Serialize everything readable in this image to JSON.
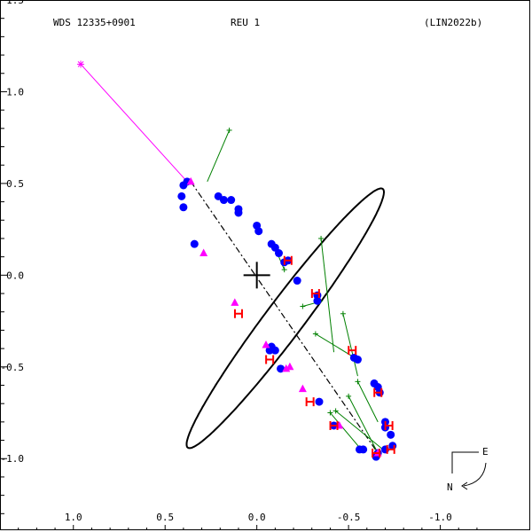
{
  "header": {
    "left": "WDS 12335+0901",
    "center": "REU   1",
    "right": "(LIN2022b)"
  },
  "compass": {
    "east": "E",
    "north": "N"
  },
  "chart_data": {
    "type": "scatter",
    "title": "",
    "xlabel": "",
    "ylabel": "",
    "xlim": [
      1.4,
      -1.5
    ],
    "ylim": [
      -1.4,
      1.5
    ],
    "x_ticks": [
      "-1.0",
      "-0.5",
      "0.0",
      "0.5",
      "1.0",
      "1.5"
    ],
    "y_ticks": [
      "1.5",
      "1.0",
      "0.5",
      "0.0",
      "-0.5",
      "-1.0"
    ],
    "grid": false,
    "colors": {
      "orbit": "#000000",
      "blue": "#0000ff",
      "red": "#ff0000",
      "magenta": "#ff00ff",
      "green": "#008000"
    },
    "primary_star": [
      0.0,
      0.0
    ],
    "orbit_ellipse": {
      "center": [
        -0.155,
        -0.235
      ],
      "semi_major": 0.883,
      "semi_minor": 0.103,
      "angle_deg": -53.0
    },
    "line_of_nodes": [
      [
        0.36,
        0.51
      ],
      [
        -0.66,
        -0.97
      ]
    ],
    "outlier": {
      "point": [
        0.96,
        1.15
      ],
      "fit": [
        0.38,
        0.51
      ]
    },
    "blue_points": [
      [
        0.38,
        0.51
      ],
      [
        0.4,
        0.49
      ],
      [
        0.41,
        0.43
      ],
      [
        0.4,
        0.37
      ],
      [
        0.34,
        0.17
      ],
      [
        0.21,
        0.43
      ],
      [
        0.18,
        0.41
      ],
      [
        0.14,
        0.41
      ],
      [
        0.1,
        0.36
      ],
      [
        0.1,
        0.34
      ],
      [
        0.0,
        0.27
      ],
      [
        -0.01,
        0.24
      ],
      [
        -0.08,
        0.17
      ],
      [
        -0.1,
        0.15
      ],
      [
        -0.12,
        0.12
      ],
      [
        -0.15,
        0.07
      ],
      [
        -0.17,
        0.08
      ],
      [
        -0.22,
        -0.03
      ],
      [
        -0.33,
        -0.11
      ],
      [
        -0.33,
        -0.14
      ],
      [
        -0.53,
        -0.45
      ],
      [
        -0.55,
        -0.46
      ],
      [
        -0.64,
        -0.59
      ],
      [
        -0.66,
        -0.61
      ],
      [
        -0.67,
        -0.64
      ],
      [
        -0.7,
        -0.8
      ],
      [
        -0.7,
        -0.83
      ],
      [
        -0.73,
        -0.87
      ],
      [
        -0.74,
        -0.93
      ],
      [
        -0.7,
        -0.95
      ],
      [
        -0.66,
        -0.97
      ],
      [
        -0.65,
        -0.99
      ],
      [
        -0.58,
        -0.95
      ],
      [
        -0.56,
        -0.95
      ],
      [
        -0.42,
        -0.82
      ],
      [
        -0.34,
        -0.69
      ],
      [
        -0.13,
        -0.51
      ],
      [
        -0.07,
        -0.41
      ],
      [
        -0.1,
        -0.41
      ],
      [
        -0.08,
        -0.39
      ]
    ],
    "red_points": [
      [
        -0.17,
        0.08
      ],
      [
        -0.32,
        -0.1
      ],
      [
        -0.52,
        -0.41
      ],
      [
        -0.66,
        -0.64
      ],
      [
        -0.72,
        -0.82
      ],
      [
        -0.73,
        -0.95
      ],
      [
        -0.65,
        -0.97
      ],
      [
        -0.42,
        -0.82
      ],
      [
        -0.29,
        -0.69
      ],
      [
        -0.07,
        -0.46
      ],
      [
        0.1,
        -0.21
      ]
    ],
    "magenta_points": [
      [
        0.36,
        0.51
      ],
      [
        0.29,
        0.12
      ],
      [
        0.12,
        -0.15
      ],
      [
        -0.05,
        -0.38
      ],
      [
        -0.16,
        -0.51
      ],
      [
        -0.18,
        -0.5
      ],
      [
        -0.25,
        -0.62
      ],
      [
        -0.45,
        -0.82
      ],
      [
        -0.66,
        -0.97
      ]
    ],
    "green_residuals": [
      [
        [
          0.15,
          0.79
        ],
        [
          0.27,
          0.51
        ]
      ],
      [
        [
          -0.35,
          0.2
        ],
        [
          -0.42,
          -0.42
        ]
      ],
      [
        [
          -0.47,
          -0.21
        ],
        [
          -0.55,
          -0.55
        ]
      ],
      [
        [
          -0.25,
          -0.17
        ],
        [
          -0.36,
          -0.14
        ]
      ],
      [
        [
          -0.32,
          -0.32
        ],
        [
          -0.55,
          -0.46
        ]
      ],
      [
        [
          -0.15,
          0.03
        ],
        [
          -0.12,
          0.1
        ]
      ],
      [
        [
          -0.55,
          -0.58
        ],
        [
          -0.66,
          -0.8
        ]
      ],
      [
        [
          -0.43,
          -0.74
        ],
        [
          -0.7,
          -0.96
        ]
      ],
      [
        [
          -0.5,
          -0.66
        ],
        [
          -0.66,
          -0.97
        ]
      ],
      [
        [
          -0.4,
          -0.75
        ],
        [
          -0.56,
          -0.94
        ]
      ]
    ]
  }
}
